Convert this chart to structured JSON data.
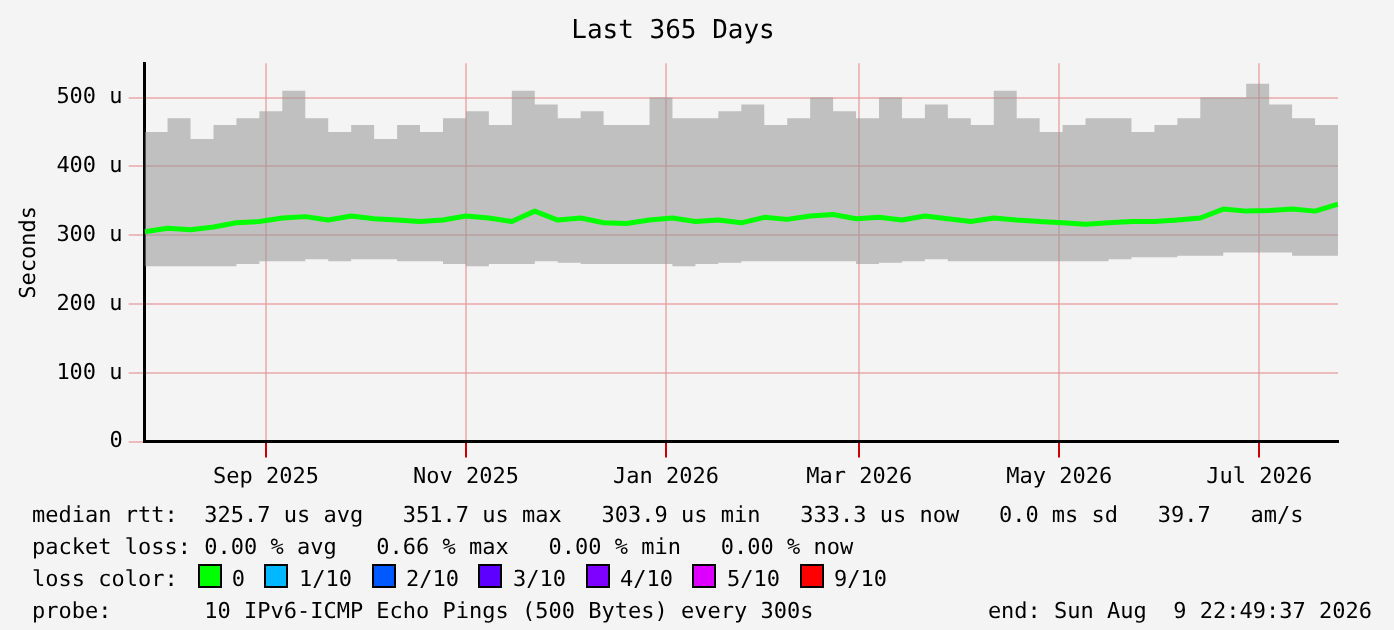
{
  "chart_data": {
    "type": "line",
    "title": "Last 365 Days",
    "ylabel": "Seconds",
    "x": [
      "2025-08-10",
      "2025-08-17",
      "2025-08-24",
      "2025-08-31",
      "2025-09-07",
      "2025-09-14",
      "2025-09-21",
      "2025-09-28",
      "2025-10-05",
      "2025-10-12",
      "2025-10-19",
      "2025-10-26",
      "2025-11-02",
      "2025-11-09",
      "2025-11-16",
      "2025-11-23",
      "2025-11-30",
      "2025-12-07",
      "2025-12-14",
      "2025-12-21",
      "2025-12-28",
      "2026-01-04",
      "2026-01-11",
      "2026-01-18",
      "2026-01-25",
      "2026-02-01",
      "2026-02-08",
      "2026-02-15",
      "2026-02-22",
      "2026-03-01",
      "2026-03-08",
      "2026-03-15",
      "2026-03-22",
      "2026-03-29",
      "2026-04-05",
      "2026-04-12",
      "2026-04-19",
      "2026-04-26",
      "2026-05-03",
      "2026-05-10",
      "2026-05-17",
      "2026-05-24",
      "2026-05-31",
      "2026-06-07",
      "2026-06-14",
      "2026-06-21",
      "2026-06-28",
      "2026-07-05",
      "2026-07-12",
      "2026-07-19",
      "2026-07-26",
      "2026-08-02",
      "2026-08-09"
    ],
    "series": [
      {
        "color": "#00ff00",
        "values": [
          305,
          310,
          308,
          312,
          318,
          320,
          325,
          327,
          322,
          328,
          324,
          322,
          320,
          322,
          328,
          325,
          320,
          335,
          322,
          325,
          318,
          317,
          322,
          325,
          320,
          322,
          318,
          326,
          323,
          328,
          330,
          324,
          326,
          322,
          328,
          324,
          320,
          325,
          322,
          320,
          318,
          316,
          318,
          320,
          320,
          322,
          325,
          338,
          335,
          336,
          338,
          335,
          345
        ],
        "upper": [
          450,
          470,
          440,
          460,
          470,
          480,
          510,
          470,
          450,
          460,
          440,
          460,
          450,
          470,
          480,
          460,
          510,
          490,
          470,
          480,
          460,
          460,
          500,
          470,
          470,
          480,
          490,
          460,
          470,
          500,
          480,
          470,
          500,
          470,
          490,
          470,
          460,
          510,
          470,
          450,
          460,
          470,
          470,
          450,
          460,
          470,
          500,
          500,
          520,
          490,
          470,
          460,
          430
        ],
        "lower": [
          255,
          255,
          255,
          255,
          258,
          262,
          262,
          265,
          262,
          265,
          265,
          262,
          262,
          258,
          255,
          258,
          258,
          262,
          260,
          258,
          258,
          258,
          258,
          255,
          258,
          260,
          262,
          262,
          262,
          262,
          262,
          258,
          260,
          262,
          265,
          262,
          262,
          262,
          262,
          262,
          262,
          262,
          265,
          268,
          268,
          270,
          270,
          275,
          275,
          275,
          270,
          270,
          270
        ]
      }
    ],
    "xlim": [
      "2025-08-10",
      "2026-08-09"
    ],
    "xticks": [
      {
        "value": "2025-09-16",
        "label": "Sep 2025"
      },
      {
        "value": "2025-11-16",
        "label": "Nov 2025"
      },
      {
        "value": "2026-01-16",
        "label": "Jan 2026"
      },
      {
        "value": "2026-03-16",
        "label": "Mar 2026"
      },
      {
        "value": "2026-05-16",
        "label": "May 2026"
      },
      {
        "value": "2026-07-16",
        "label": "Jul 2026"
      }
    ],
    "ylim": [
      0,
      550
    ],
    "yticks": [
      0,
      {
        "value": 100,
        "label": "100 u"
      },
      {
        "value": 200,
        "label": "200 u"
      },
      {
        "value": 300,
        "label": "300 u"
      },
      {
        "value": 400,
        "label": "400 u"
      },
      {
        "value": 500,
        "label": "500 u"
      }
    ],
    "grid": true,
    "legend": false,
    "marker": "none",
    "line_style": "solid",
    "annotations": [
      "median rtt:  325.7 us avg   351.7 us max   303.9 us min   333.3 us now   0.0 ms sd   39.7   am/s",
      "packet loss: 0.00 % avg   0.66 % max   0.00 % min   0.00 % now",
      "loss color:",
      "0",
      "1/10",
      "2/10",
      "3/10",
      "4/10",
      "5/10",
      "9/10",
      "probe:       10 IPv6-ICMP Echo Pings (500 Bytes) every 300s",
      "end: Sun Aug  9 22:49:37 2026"
    ]
  }
}
